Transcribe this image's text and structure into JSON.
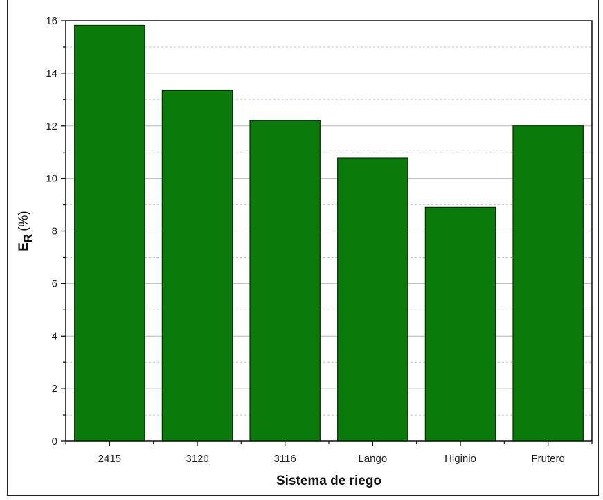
{
  "chart_data": {
    "type": "bar",
    "categories": [
      "2415",
      "3120",
      "3116",
      "Lango",
      "Higinio",
      "Frutero"
    ],
    "values": [
      15.83,
      13.35,
      12.2,
      10.78,
      8.9,
      12.02
    ],
    "xlabel": "Sistema de riego",
    "ylabel_main": "E",
    "ylabel_sub": "R",
    "ylabel_unit": "(%)",
    "ylim": [
      0,
      16
    ],
    "yticks": [
      0,
      2,
      4,
      6,
      8,
      10,
      12,
      14,
      16
    ],
    "yticks_labels": [
      "0",
      "2",
      "4",
      "6",
      "8",
      "10",
      "12",
      "14",
      "16"
    ],
    "grid": true,
    "bar_color": "#0a7a0a",
    "bar_edge_color": "#0d2a0d",
    "grid_color": "#c4c4c4"
  }
}
